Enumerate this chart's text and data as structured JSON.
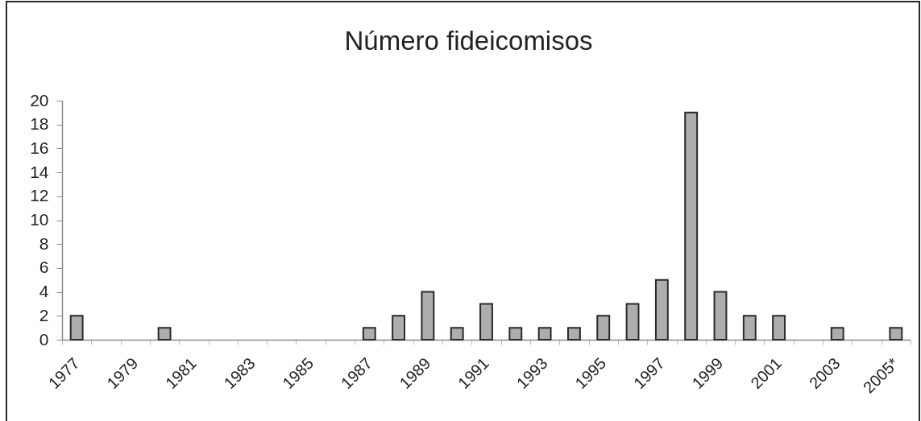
{
  "chart_data": {
    "type": "bar",
    "title": "Número fideicomisos",
    "categories": [
      "1977",
      null,
      "1979",
      null,
      "1981",
      null,
      "1983",
      null,
      "1985",
      null,
      "1987",
      null,
      "1989",
      null,
      "1991",
      null,
      "1993",
      null,
      "1995",
      null,
      "1997",
      null,
      "1999",
      null,
      "2001",
      null,
      "2003",
      null,
      "2005*"
    ],
    "values": [
      2,
      0,
      0,
      1,
      0,
      0,
      0,
      0,
      0,
      0,
      1,
      2,
      4,
      1,
      3,
      1,
      1,
      1,
      2,
      3,
      5,
      19,
      4,
      2,
      2,
      0,
      1,
      0,
      1
    ],
    "color": "#adadad",
    "ylim": [
      0,
      20
    ],
    "yticks": [
      0,
      2,
      4,
      6,
      8,
      10,
      12,
      14,
      16,
      18,
      20
    ]
  }
}
